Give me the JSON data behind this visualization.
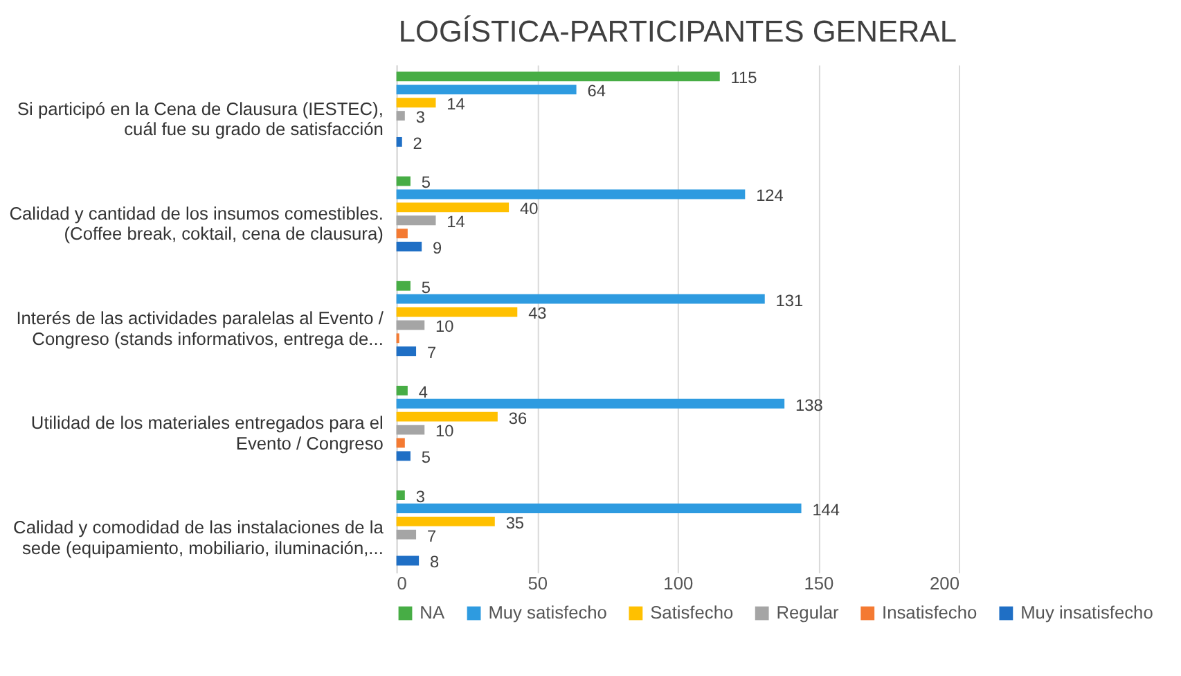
{
  "chart_data": {
    "type": "bar",
    "orientation": "horizontal",
    "title": "LOGÍSTICA-PARTICIPANTES GENERAL",
    "categories": [
      "Si participó en la Cena de Clausura (IESTEC), cuál fue su grado de satisfacción",
      "Calidad y cantidad de los insumos comestibles. (Coffee break, coktail, cena de clausura)",
      "Interés de las actividades paralelas al Evento / Congreso (stands informativos, entrega de...",
      "Utilidad de los materiales entregados para el Evento / Congreso",
      "Calidad y comodidad de las instalaciones de la sede (equipamiento, mobiliario, iluminación,..."
    ],
    "series": [
      {
        "name": "NA",
        "color": "#47ad45",
        "values": [
          115,
          5,
          5,
          4,
          3
        ],
        "value_labels": [
          "115",
          "5",
          "5",
          "4",
          "3"
        ]
      },
      {
        "name": "Muy satisfecho",
        "color": "#2e9be0",
        "values": [
          64,
          124,
          131,
          138,
          144
        ],
        "value_labels": [
          "64",
          "124",
          "131",
          "138",
          "144"
        ]
      },
      {
        "name": "Satisfecho",
        "color": "#ffc000",
        "values": [
          14,
          40,
          43,
          36,
          35
        ],
        "value_labels": [
          "14",
          "40",
          "43",
          "36",
          "35"
        ]
      },
      {
        "name": "Regular",
        "color": "#a5a5a5",
        "values": [
          3,
          14,
          10,
          10,
          7
        ],
        "value_labels": [
          "3",
          "14",
          "10",
          "10",
          "7"
        ]
      },
      {
        "name": "Insatisfecho",
        "color": "#f47a32",
        "values": [
          0,
          4,
          1,
          3,
          0
        ],
        "value_labels": [
          null,
          null,
          null,
          null,
          null
        ]
      },
      {
        "name": "Muy insatisfecho",
        "color": "#1f6fc5",
        "values": [
          2,
          9,
          7,
          5,
          8
        ],
        "value_labels": [
          "2",
          "9",
          "7",
          "5",
          "8"
        ]
      }
    ],
    "xlim": [
      0,
      200
    ],
    "xticks": [
      0,
      50,
      100,
      150,
      200
    ],
    "grid": "x",
    "legend": "bottom"
  }
}
